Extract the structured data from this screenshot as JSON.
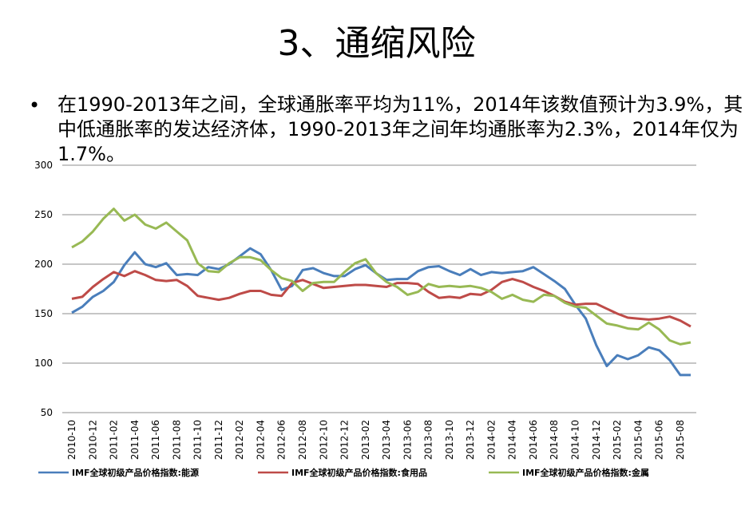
{
  "header": {
    "title": "3、通缩风险"
  },
  "bullets": [
    "在1990-2013年之间，全球通胀率平均为11%，2014年该数值预计为3.9%，其中低通胀率的发达经济体，1990-2013年之间年均通胀率为2.3%，2014年仅为1.7%。"
  ],
  "chart_data": {
    "type": "line",
    "categories": [
      "2010-10",
      null,
      "2010-12",
      null,
      "2011-02",
      null,
      "2011-04",
      null,
      "2011-06",
      null,
      "2011-08",
      null,
      "2011-10",
      null,
      "2011-12",
      null,
      "2012-02",
      null,
      "2012-04",
      null,
      "2012-06",
      null,
      "2012-08",
      null,
      "2012-10",
      null,
      "2012-12",
      null,
      "2013-02",
      null,
      "2013-04",
      null,
      "2013-06",
      null,
      "2013-08",
      null,
      "2013-10",
      null,
      "2013-12",
      null,
      "2014-02",
      null,
      "2014-04",
      null,
      "2014-06",
      null,
      "2014-08",
      null,
      "2014-10",
      null,
      "2014-12",
      null,
      "2015-02",
      null,
      "2015-04",
      null,
      "2015-06",
      null,
      "2015-08",
      null
    ],
    "series": [
      {
        "name": "IMF全球初级产品价格指数:能源",
        "color": "#4a7ebb",
        "values": [
          151,
          157,
          167,
          173,
          182,
          199,
          212,
          200,
          197,
          201,
          189,
          190,
          189,
          197,
          195,
          200,
          208,
          216,
          210,
          194,
          174,
          178,
          194,
          196,
          191,
          188,
          188,
          195,
          199,
          191,
          184,
          185,
          185,
          193,
          197,
          198,
          193,
          189,
          195,
          189,
          192,
          191,
          192,
          193,
          197,
          190,
          183,
          175,
          159,
          145,
          118,
          97,
          108,
          104,
          108,
          116,
          113,
          103,
          88,
          88
        ]
      },
      {
        "name": "IMF全球初级产品价格指数:食用品",
        "color": "#be4b48",
        "values": [
          165,
          167,
          177,
          185,
          192,
          188,
          193,
          189,
          184,
          183,
          184,
          178,
          168,
          166,
          164,
          166,
          170,
          173,
          173,
          169,
          168,
          181,
          184,
          180,
          176,
          177,
          178,
          179,
          179,
          178,
          177,
          181,
          181,
          180,
          172,
          166,
          167,
          166,
          170,
          169,
          174,
          182,
          185,
          182,
          177,
          173,
          168,
          162,
          159,
          160,
          160,
          155,
          150,
          146,
          145,
          144,
          145,
          147,
          143,
          137
        ]
      },
      {
        "name": "IMF全球初级产品价格指数:金属",
        "color": "#98b954",
        "values": [
          217,
          223,
          233,
          246,
          256,
          244,
          250,
          240,
          236,
          242,
          233,
          224,
          201,
          193,
          192,
          201,
          207,
          207,
          204,
          194,
          186,
          183,
          173,
          181,
          182,
          182,
          192,
          201,
          205,
          191,
          182,
          177,
          169,
          172,
          180,
          177,
          178,
          177,
          178,
          176,
          172,
          165,
          169,
          164,
          162,
          169,
          168,
          161,
          157,
          156,
          148,
          140,
          138,
          135,
          134,
          141,
          134,
          123,
          119,
          121
        ]
      }
    ],
    "ylim": [
      50,
      300
    ],
    "yticks": [
      50,
      100,
      150,
      200,
      250,
      300
    ],
    "grid": true,
    "legend": "bottom"
  }
}
